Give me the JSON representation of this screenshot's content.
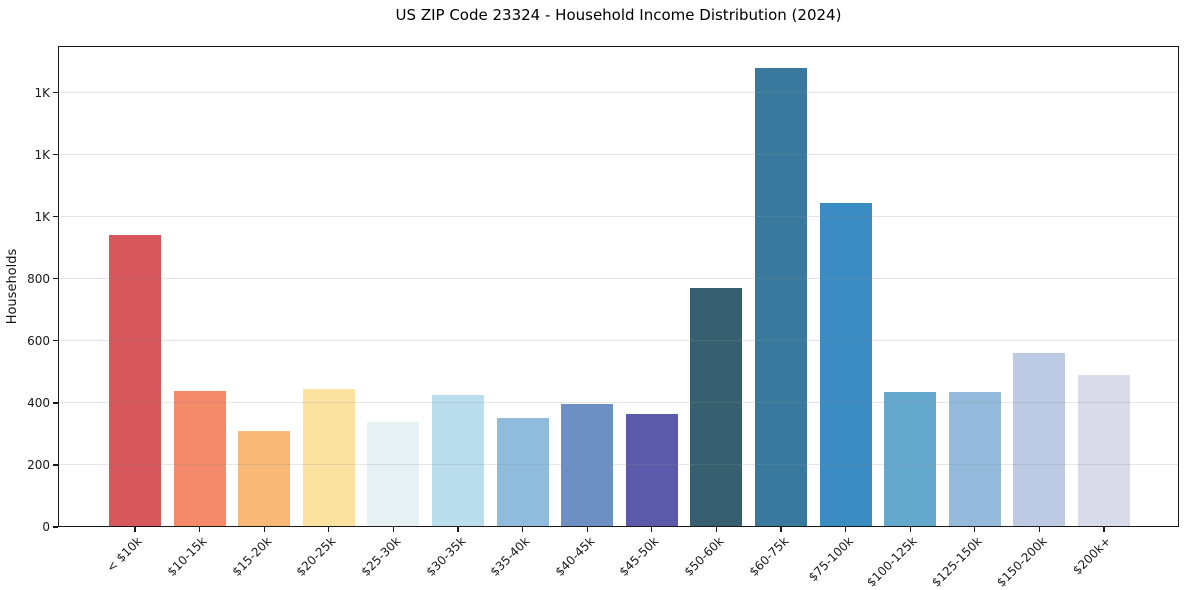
{
  "chart_data": {
    "type": "bar",
    "title": "US ZIP Code 23324 - Household Income Distribution (2024)",
    "xlabel": "",
    "ylabel": "Households",
    "categories": [
      "< $10k",
      "$10-15k",
      "$15-20k",
      "$20-25k",
      "$25-30k",
      "$30-35k",
      "$35-40k",
      "$40-45k",
      "$45-50k",
      "$50-60k",
      "$60-75k",
      "$75-100k",
      "$100-125k",
      "$125-150k",
      "$150-200k",
      "$200k+"
    ],
    "values": [
      940,
      440,
      310,
      445,
      340,
      425,
      350,
      395,
      365,
      770,
      1480,
      1045,
      435,
      435,
      560,
      490
    ],
    "bar_colors": [
      "#d6585c",
      "#f48a6a",
      "#f9b877",
      "#fce2a0",
      "#e6f1f6",
      "#bbdeed",
      "#8fbcdc",
      "#6c90c4",
      "#5c5bab",
      "#36606f",
      "#38799d",
      "#3a8cc2",
      "#64a9cd",
      "#94badb",
      "#bccae3",
      "#d9dbe8"
    ],
    "ylim": [
      0,
      1550
    ],
    "yticks": [
      {
        "value": 0,
        "label": "0"
      },
      {
        "value": 200,
        "label": "200"
      },
      {
        "value": 400,
        "label": "400"
      },
      {
        "value": 600,
        "label": "600"
      },
      {
        "value": 800,
        "label": "800"
      },
      {
        "value": 1000,
        "label": "1K"
      },
      {
        "value": 1200,
        "label": "1K"
      },
      {
        "value": 1400,
        "label": "1K"
      }
    ],
    "grid": true,
    "legend": "none",
    "xtick_rotation": 45,
    "background_color": "#ffffff",
    "axis_color": "#1a1a1a"
  }
}
